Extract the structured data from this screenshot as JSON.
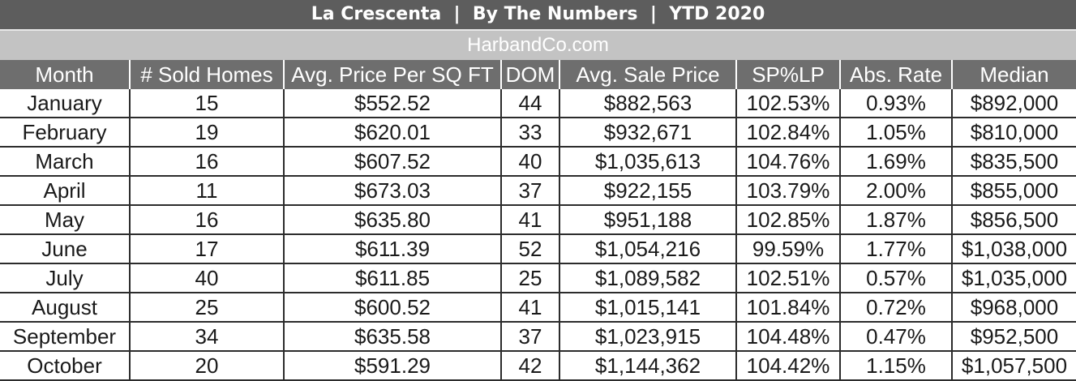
{
  "title": "La Crescenta  |  By The Numbers  |  YTD 2020",
  "subtitle": "HarbandCo.com",
  "table": {
    "headers": [
      "Month",
      "# Sold Homes",
      "Avg. Price Per SQ FT",
      "DOM",
      "Avg. Sale Price",
      "SP%LP",
      "Abs. Rate",
      "Median"
    ],
    "rows": [
      [
        "January",
        "15",
        "$552.52",
        "44",
        "$882,563",
        "102.53%",
        "0.93%",
        "$892,000"
      ],
      [
        "February",
        "19",
        "$620.01",
        "33",
        "$932,671",
        "102.84%",
        "1.05%",
        "$810,000"
      ],
      [
        "March",
        "16",
        "$607.52",
        "40",
        "$1,035,613",
        "104.76%",
        "1.69%",
        "$835,500"
      ],
      [
        "April",
        "11",
        "$673.03",
        "37",
        "$922,155",
        "103.79%",
        "2.00%",
        "$855,000"
      ],
      [
        "May",
        "16",
        "$635.80",
        "41",
        "$951,188",
        "102.85%",
        "1.87%",
        "$856,500"
      ],
      [
        "June",
        "17",
        "$611.39",
        "52",
        "$1,054,216",
        "99.59%",
        "1.77%",
        "$1,038,000"
      ],
      [
        "July",
        "40",
        "$611.85",
        "25",
        "$1,089,582",
        "102.51%",
        "0.57%",
        "$1,035,000"
      ],
      [
        "August",
        "25",
        "$600.52",
        "41",
        "$1,015,141",
        "101.84%",
        "0.72%",
        "$968,000"
      ],
      [
        "September",
        "34",
        "$635.58",
        "37",
        "$1,023,915",
        "104.48%",
        "0.47%",
        "$952,500"
      ],
      [
        "October",
        "20",
        "$591.29",
        "42",
        "$1,144,362",
        "104.42%",
        "1.15%",
        "$1,057,500"
      ]
    ]
  }
}
